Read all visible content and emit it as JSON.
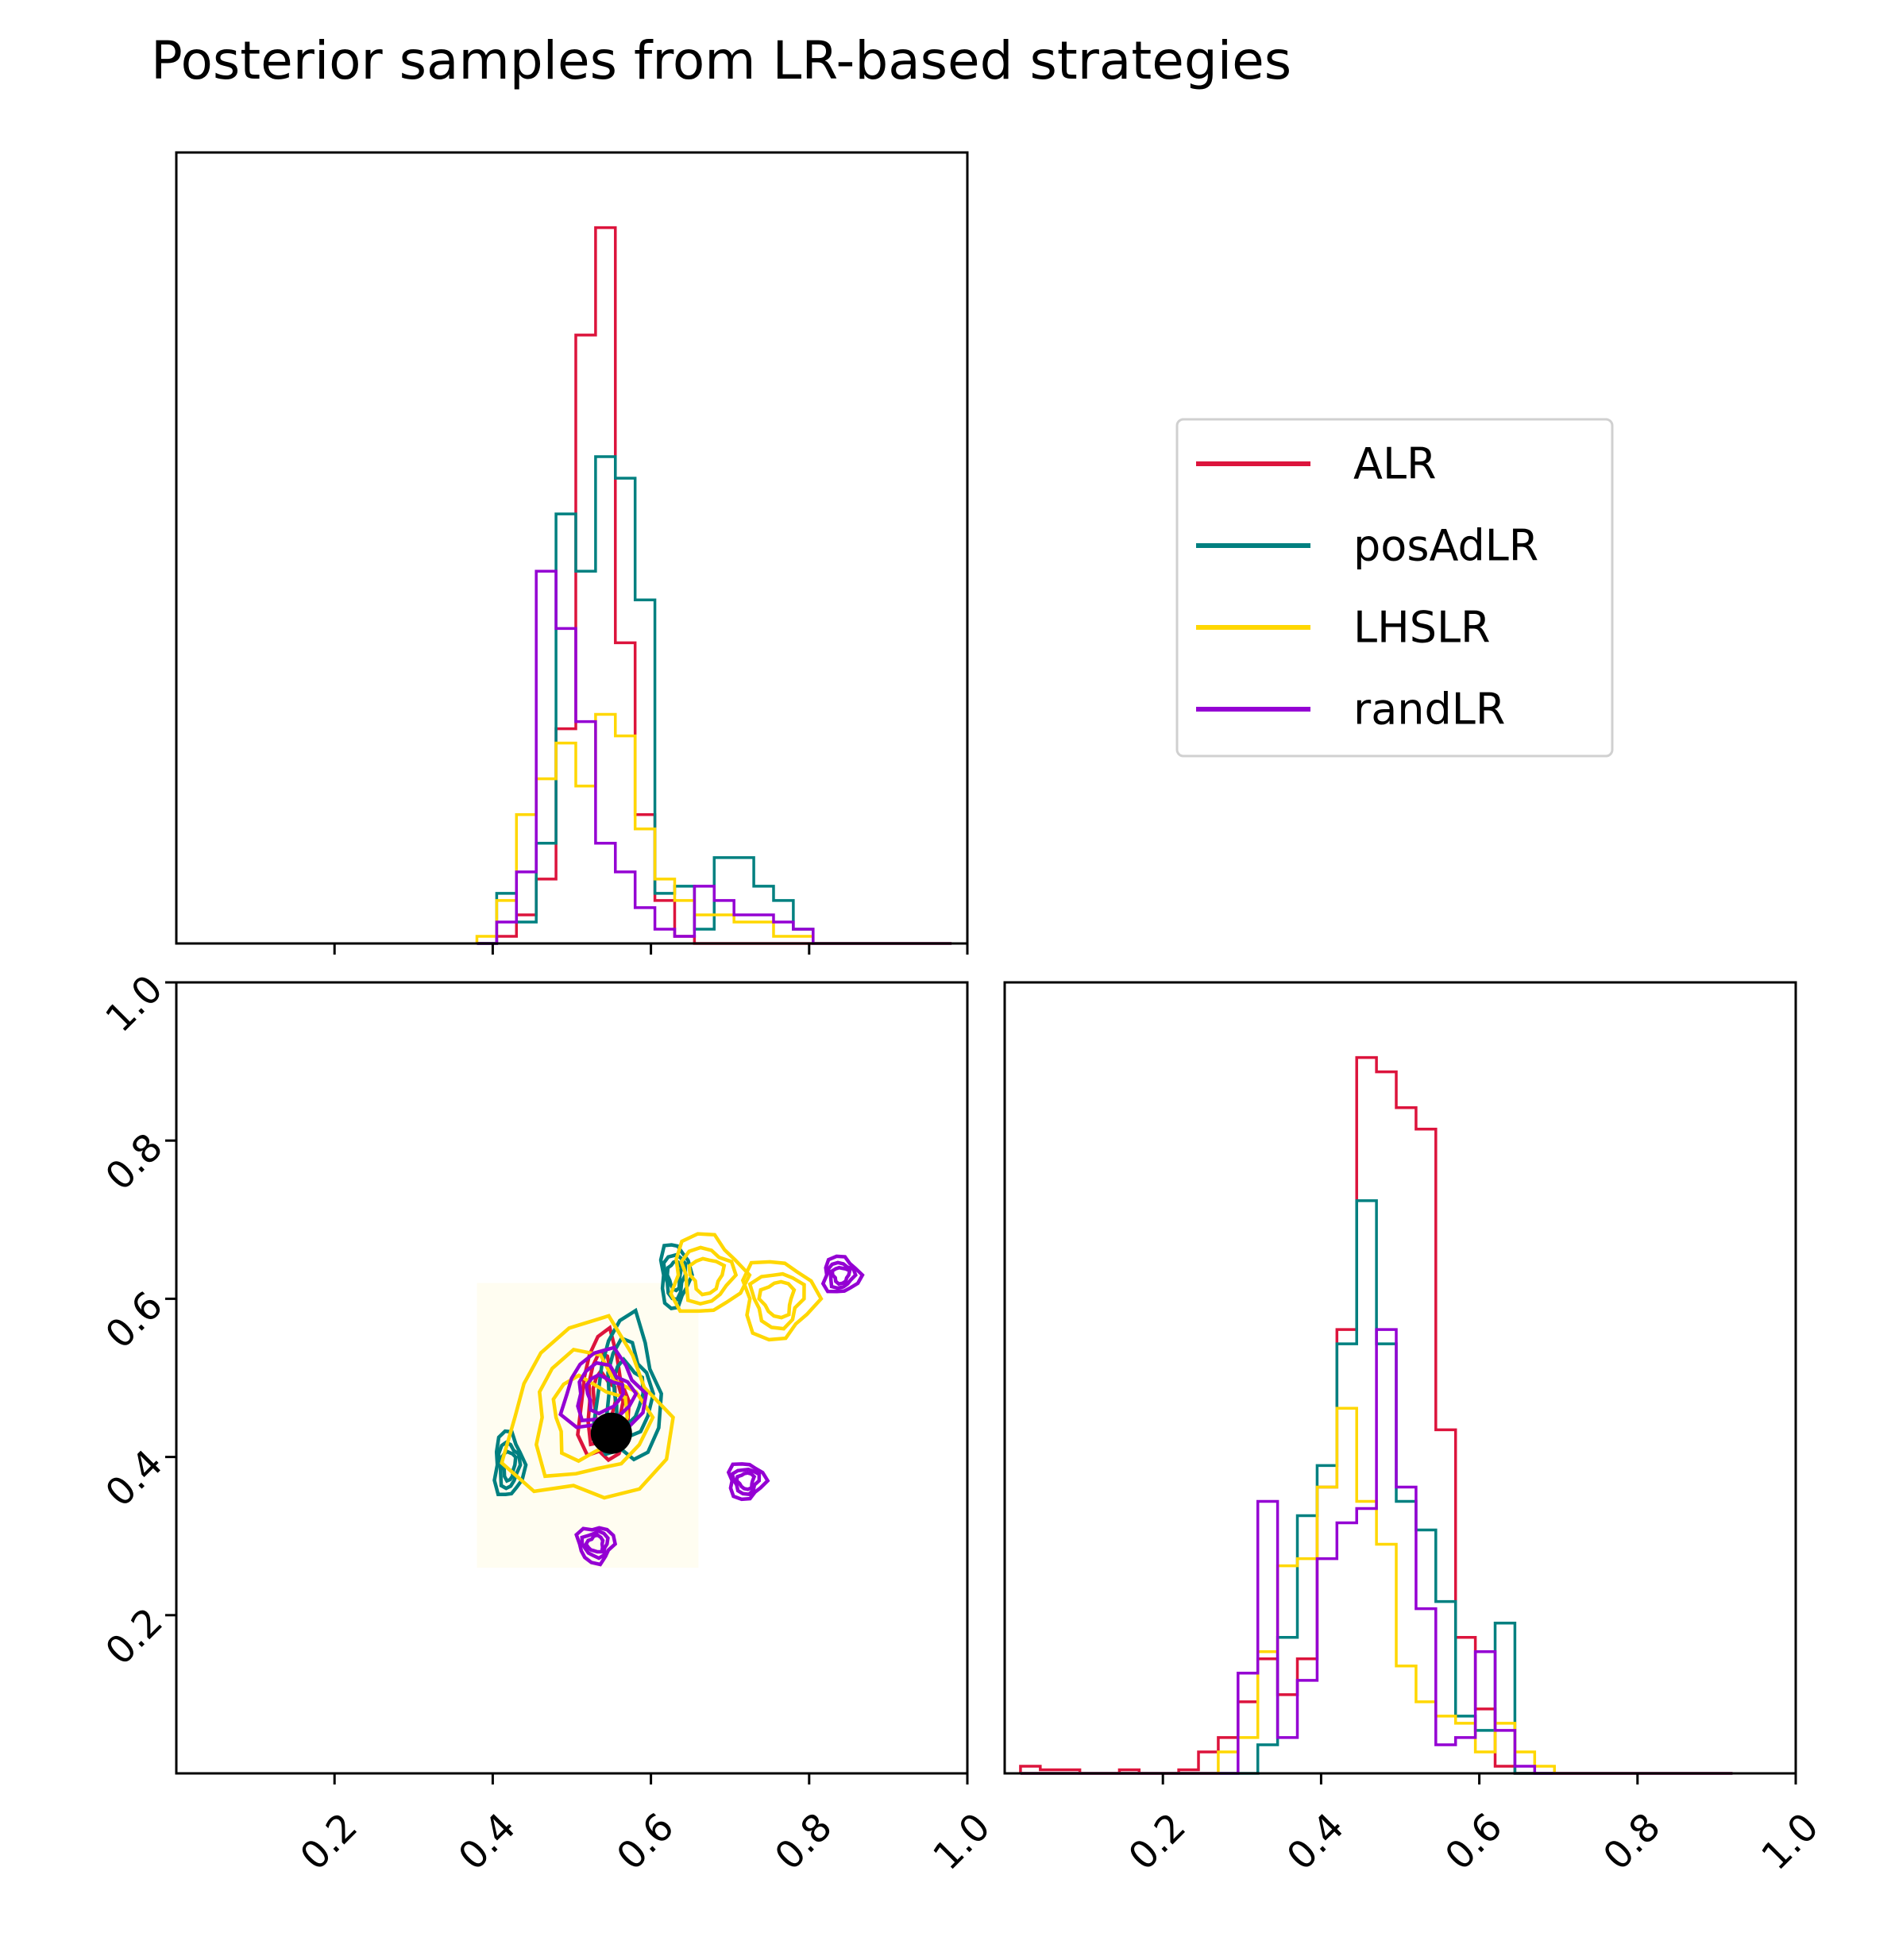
{
  "title": "Posterior samples from LR-based strategies",
  "chart_data": [
    {
      "type": "histogram",
      "panel": "top-left",
      "xlim": [
        0,
        1
      ],
      "bins": [
        0.38,
        0.405,
        0.43,
        0.455,
        0.48,
        0.505,
        0.53,
        0.555,
        0.58,
        0.605,
        0.63,
        0.655,
        0.68,
        0.705,
        0.73,
        0.755,
        0.78,
        0.805,
        0.83,
        0.855,
        0.88,
        0.905,
        0.93,
        0.955,
        0.98
      ],
      "series": [
        {
          "name": "ALR",
          "color": "#DC143C",
          "values": [
            0,
            1,
            4,
            9,
            30,
            85,
            100,
            42,
            18,
            6,
            1,
            0,
            0,
            0,
            0,
            0,
            0,
            0,
            0,
            0,
            0,
            0,
            0,
            0
          ]
        },
        {
          "name": "posAdLR",
          "color": "#008080",
          "values": [
            0,
            7,
            3,
            14,
            60,
            52,
            68,
            65,
            48,
            7,
            8,
            2,
            12,
            12,
            8,
            6,
            2,
            0,
            0,
            0,
            0,
            0,
            0,
            0
          ]
        },
        {
          "name": "LHSLR",
          "color": "#FFD700",
          "values": [
            1,
            6,
            18,
            23,
            28,
            22,
            32,
            29,
            16,
            9,
            6,
            4,
            4,
            3,
            3,
            1,
            1,
            0,
            0,
            0,
            0,
            0,
            0,
            0
          ]
        },
        {
          "name": "randLR",
          "color": "#9400D3",
          "values": [
            0,
            3,
            10,
            52,
            44,
            31,
            14,
            10,
            5,
            2,
            1,
            8,
            6,
            4,
            4,
            3,
            2,
            0,
            0,
            0,
            0,
            0,
            0,
            0
          ]
        }
      ]
    },
    {
      "type": "contour",
      "panel": "bottom-left",
      "xlim": [
        0,
        1
      ],
      "ylim": [
        0,
        1
      ],
      "truth": {
        "x": 0.55,
        "y": 0.43
      },
      "series": [
        {
          "name": "ALR",
          "color": "#DC143C",
          "centers": [
            [
              0.54,
              0.47
            ]
          ],
          "spread": [
            0.03,
            0.08
          ]
        },
        {
          "name": "posAdLR",
          "color": "#008080",
          "centers": [
            [
              0.57,
              0.48
            ],
            [
              0.42,
              0.39
            ],
            [
              0.63,
              0.63
            ]
          ],
          "spread": [
            0.04,
            0.09
          ]
        },
        {
          "name": "LHSLR",
          "color": "#FFD700",
          "centers": [
            [
              0.52,
              0.45
            ],
            [
              0.67,
              0.63
            ],
            [
              0.76,
              0.6
            ]
          ],
          "spread": [
            0.1,
            0.11
          ]
        },
        {
          "name": "randLR",
          "color": "#9400D3",
          "centers": [
            [
              0.54,
              0.48
            ],
            [
              0.84,
              0.63
            ],
            [
              0.72,
              0.37
            ],
            [
              0.53,
              0.29
            ]
          ],
          "spread": [
            0.05,
            0.05
          ]
        }
      ]
    },
    {
      "type": "histogram",
      "panel": "bottom-right",
      "xlim": [
        0,
        1
      ],
      "bins": [
        0.02,
        0.045,
        0.07,
        0.095,
        0.12,
        0.145,
        0.17,
        0.195,
        0.22,
        0.245,
        0.27,
        0.295,
        0.32,
        0.345,
        0.37,
        0.395,
        0.42,
        0.445,
        0.47,
        0.495,
        0.52,
        0.545,
        0.57,
        0.595,
        0.62,
        0.645,
        0.67,
        0.695,
        0.72,
        0.745,
        0.77,
        0.795,
        0.82,
        0.845,
        0.87,
        0.895,
        0.92
      ],
      "series": [
        {
          "name": "ALR",
          "color": "#DC143C",
          "values": [
            1,
            0.5,
            0.5,
            0,
            0,
            0.5,
            0,
            0,
            0.5,
            3,
            5,
            10,
            16,
            11,
            16,
            40,
            62,
            100,
            98,
            93,
            90,
            48,
            19,
            9,
            1,
            0,
            0,
            0,
            0,
            0,
            0,
            0,
            0,
            0,
            0,
            0
          ]
        },
        {
          "name": "posAdLR",
          "color": "#008080",
          "values": [
            0,
            0,
            0,
            0,
            0,
            0,
            0,
            0,
            0,
            0,
            0,
            0,
            4,
            19,
            36,
            43,
            60,
            80,
            60,
            38,
            34,
            24,
            8,
            6,
            21,
            0,
            0,
            0,
            0,
            0,
            0,
            0,
            0,
            0,
            0,
            0
          ]
        },
        {
          "name": "LHSLR",
          "color": "#FFD700",
          "values": [
            0,
            0,
            0,
            0,
            0,
            0,
            0,
            0,
            0,
            0,
            3,
            5,
            17,
            29,
            30,
            40,
            51,
            38,
            32,
            15,
            10,
            8,
            7,
            3,
            7,
            3,
            1,
            0,
            0,
            0,
            0,
            0,
            0,
            0,
            0,
            0
          ]
        },
        {
          "name": "randLR",
          "color": "#9400D3",
          "values": [
            0,
            0,
            0,
            0,
            0,
            0,
            0,
            0,
            0,
            0,
            0,
            14,
            38,
            5,
            13,
            30,
            35,
            37,
            62,
            40,
            23,
            4,
            5,
            17,
            6,
            1,
            0,
            0,
            0,
            0,
            0,
            0,
            0,
            0,
            0,
            0
          ]
        }
      ]
    }
  ],
  "axes": {
    "top_left_xticks": [
      "0.2",
      "0.4",
      "0.6",
      "0.8",
      "1.0"
    ],
    "bottom_left_xticks": [
      "0.2",
      "0.4",
      "0.6",
      "0.8",
      "1.0"
    ],
    "bottom_left_yticks": [
      "0.2",
      "0.4",
      "0.6",
      "0.8",
      "1.0"
    ],
    "bottom_right_xticks": [
      "0.2",
      "0.4",
      "0.6",
      "0.8",
      "1.0"
    ]
  },
  "legend": {
    "placement": "right of top-left panel",
    "items": [
      {
        "label": "ALR",
        "color": "#DC143C"
      },
      {
        "label": "posAdLR",
        "color": "#008080"
      },
      {
        "label": "LHSLR",
        "color": "#FFD700"
      },
      {
        "label": "randLR",
        "color": "#9400D3"
      }
    ]
  }
}
